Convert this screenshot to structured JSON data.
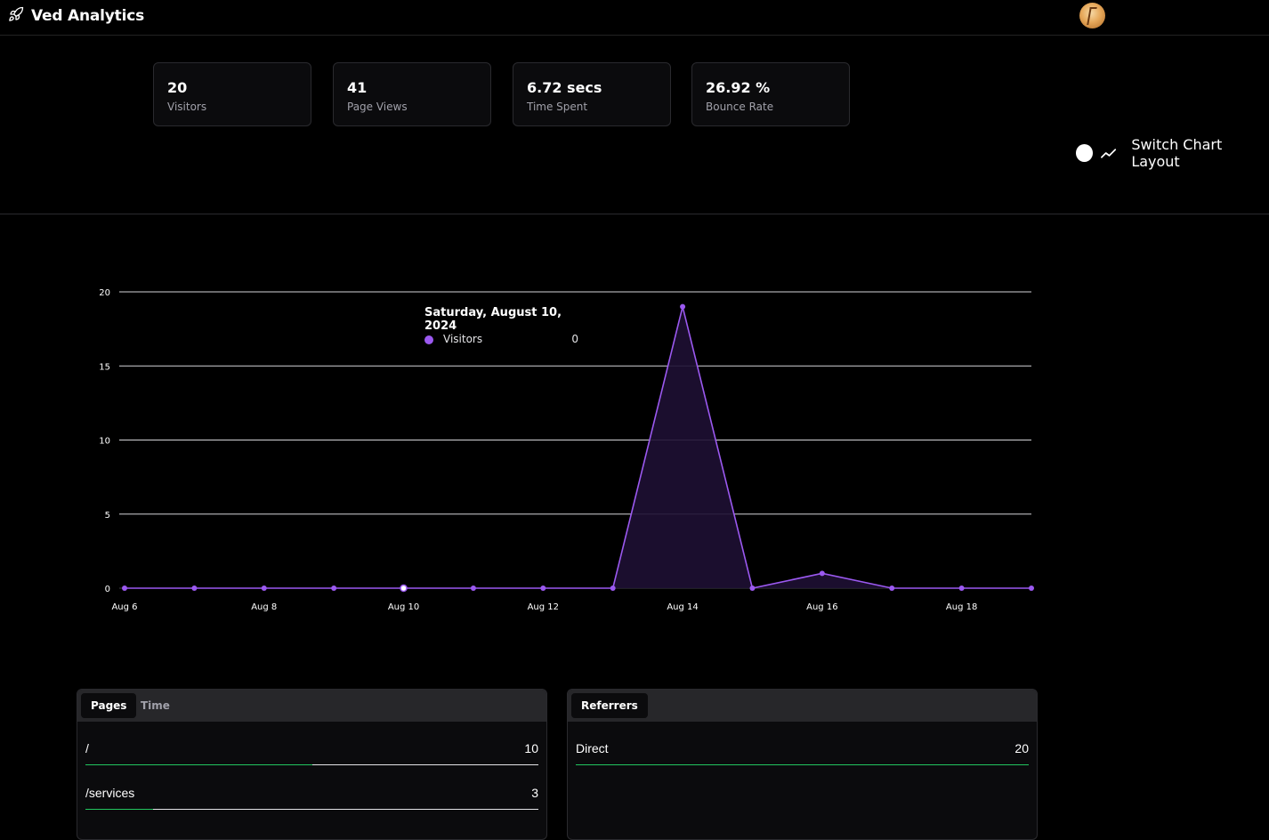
{
  "app": {
    "title": "Ved Analytics",
    "accent": "#9b59f0"
  },
  "stats": [
    {
      "value": "20",
      "label": "Visitors"
    },
    {
      "value": "41",
      "label": "Page Views"
    },
    {
      "value": "6.72 secs",
      "label": "Time Spent"
    },
    {
      "value": "26.92 %",
      "label": "Bounce Rate"
    }
  ],
  "switch": {
    "label": "Switch Chart Layout",
    "icon": "trend-line-icon",
    "state": "off"
  },
  "chart_data": {
    "type": "area",
    "x": [
      "Aug 6",
      "Aug 7",
      "Aug 8",
      "Aug 9",
      "Aug 10",
      "Aug 11",
      "Aug 12",
      "Aug 13",
      "Aug 14",
      "Aug 15",
      "Aug 16",
      "Aug 17",
      "Aug 18",
      "Aug 19"
    ],
    "x_tick_labels": [
      "Aug 6",
      "Aug 8",
      "Aug 10",
      "Aug 12",
      "Aug 14",
      "Aug 16",
      "Aug 18"
    ],
    "series": [
      {
        "name": "Visitors",
        "color": "#9b59f0",
        "values": [
          0,
          0,
          0,
          0,
          0,
          0,
          0,
          0,
          19,
          0,
          1,
          0,
          0,
          0
        ]
      }
    ],
    "yticks": [
      0,
      5,
      10,
      15,
      20
    ],
    "ylim": [
      0,
      20
    ],
    "grid": true,
    "highlight_index": 4,
    "tooltip": {
      "title": "Saturday, August 10, 2024",
      "series": "Visitors",
      "value": "0"
    }
  },
  "pages_panel": {
    "tabs": [
      {
        "label": "Pages",
        "active": true
      },
      {
        "label": "Time",
        "active": false
      }
    ],
    "rows": [
      {
        "label": "/",
        "count": "10",
        "share": 0.5
      },
      {
        "label": "/services",
        "count": "3",
        "share": 0.15
      }
    ]
  },
  "referrers_panel": {
    "tabs": [
      {
        "label": "Referrers",
        "active": true
      }
    ],
    "rows": [
      {
        "label": "Direct",
        "count": "20",
        "share": 1.0
      }
    ]
  }
}
